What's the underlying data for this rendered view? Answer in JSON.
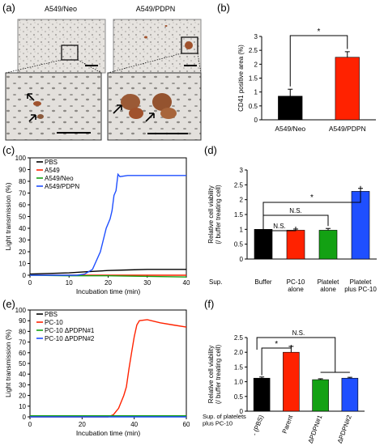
{
  "panels": {
    "a": {
      "label": "(a)",
      "images": [
        {
          "title": "A549/Neo"
        },
        {
          "title": "A549/PDPN"
        }
      ]
    },
    "b": {
      "label": "(b)"
    },
    "c": {
      "label": "(c)"
    },
    "d": {
      "label": "(d)"
    },
    "e": {
      "label": "(e)"
    },
    "f": {
      "label": "(f)"
    }
  },
  "colors": {
    "black": "#000000",
    "red": "#ff2200",
    "green": "#13a113",
    "blue": "#1f4fff",
    "stain": "#a0522d"
  },
  "chart_data": [
    {
      "id": "b",
      "type": "bar",
      "ylabel": "CD41 positive area (%)",
      "categories": [
        "A549/Neo",
        "A549/PDPN"
      ],
      "values": [
        0.85,
        2.25
      ],
      "errors": [
        0.25,
        0.2
      ],
      "colors": [
        "#000000",
        "#ff2200"
      ],
      "ylim": [
        0,
        3
      ],
      "yticks": [
        "0",
        "0.5",
        "1",
        "1.5",
        "2",
        "2.5",
        "3"
      ],
      "significance": [
        {
          "from": 0,
          "to": 1,
          "label": "*"
        }
      ]
    },
    {
      "id": "c",
      "type": "line",
      "xlabel": "Incubation time (min)",
      "ylabel": "Light transmission (%)",
      "xlim": [
        0,
        40
      ],
      "ylim": [
        0,
        100
      ],
      "xticks": [
        "0",
        "10",
        "20",
        "30",
        "40"
      ],
      "yticks": [
        "0",
        "10",
        "20",
        "30",
        "40",
        "50",
        "60",
        "70",
        "80",
        "90",
        "100"
      ],
      "legend_position": "top-left",
      "series": [
        {
          "name": "PBS",
          "color": "#000000",
          "points": [
            [
              0,
              1
            ],
            [
              5,
              1.5
            ],
            [
              10,
              2
            ],
            [
              15,
              3
            ],
            [
              20,
              4
            ],
            [
              25,
              4.5
            ],
            [
              30,
              5
            ],
            [
              35,
              5
            ],
            [
              40,
              5
            ]
          ]
        },
        {
          "name": "A549",
          "color": "#ff2200",
          "points": [
            [
              0,
              0
            ],
            [
              10,
              0
            ],
            [
              20,
              0
            ],
            [
              30,
              0
            ],
            [
              40,
              0
            ]
          ]
        },
        {
          "name": "A549/Neo",
          "color": "#13a113",
          "points": [
            [
              0,
              0
            ],
            [
              10,
              -0.5
            ],
            [
              20,
              -0.5
            ],
            [
              30,
              -1
            ],
            [
              40,
              -1.5
            ]
          ]
        },
        {
          "name": "A549/PDPN",
          "color": "#1f4fff",
          "points": [
            [
              0,
              0
            ],
            [
              12,
              0
            ],
            [
              14,
              1
            ],
            [
              16,
              5
            ],
            [
              18,
              20
            ],
            [
              19.5,
              40
            ],
            [
              20.5,
              48
            ],
            [
              21,
              55
            ],
            [
              21.5,
              68
            ],
            [
              22,
              72
            ],
            [
              22.5,
              86
            ],
            [
              23,
              84
            ],
            [
              25,
              85
            ],
            [
              30,
              85
            ],
            [
              35,
              85
            ],
            [
              40,
              85
            ]
          ]
        }
      ]
    },
    {
      "id": "d",
      "type": "bar",
      "ylabel": "Relative cell viability\n(/ buffer treating cell)",
      "row_label": "Sup.",
      "categories": [
        "Buffer",
        "PC-10 alone",
        "Platelet alone",
        "Platelet plus PC-10"
      ],
      "values": [
        1.0,
        0.97,
        0.97,
        2.28
      ],
      "errors": [
        0.0,
        0.04,
        0.06,
        0.1
      ],
      "colors": [
        "#000000",
        "#ff2200",
        "#13a113",
        "#1f4fff"
      ],
      "ylim": [
        0,
        3
      ],
      "yticks": [
        "0",
        "0.5",
        "1",
        "1.5",
        "2",
        "2.5",
        "3"
      ],
      "significance": [
        {
          "from": 0,
          "to": 1,
          "label": "N.S."
        },
        {
          "from": 0,
          "to": 2,
          "label": "N.S."
        },
        {
          "from": 0,
          "to": 3,
          "label": "*"
        }
      ]
    },
    {
      "id": "e",
      "type": "line",
      "xlabel": "Incubation time (min)",
      "ylabel": "Light transmission (%)",
      "xlim": [
        0,
        60
      ],
      "ylim": [
        0,
        100
      ],
      "xticks": [
        "0",
        "20",
        "40",
        "60"
      ],
      "yticks": [
        "0",
        "10",
        "20",
        "30",
        "40",
        "50",
        "60",
        "70",
        "80",
        "90",
        "100"
      ],
      "legend_position": "top-left",
      "series": [
        {
          "name": "PBS",
          "color": "#000000",
          "points": [
            [
              0,
              1
            ],
            [
              20,
              1
            ],
            [
              40,
              1
            ],
            [
              60,
              1
            ]
          ]
        },
        {
          "name": "PC-10",
          "color": "#ff2200",
          "points": [
            [
              0,
              0
            ],
            [
              30,
              0
            ],
            [
              32,
              2
            ],
            [
              34,
              8
            ],
            [
              36,
              20
            ],
            [
              37,
              28
            ],
            [
              38,
              45
            ],
            [
              39,
              60
            ],
            [
              40,
              75
            ],
            [
              41,
              86
            ],
            [
              42,
              90
            ],
            [
              45,
              91
            ],
            [
              50,
              88
            ],
            [
              55,
              86
            ],
            [
              60,
              84
            ]
          ]
        },
        {
          "name": "PC-10 ΔPDPN#1",
          "color": "#13a113",
          "points": [
            [
              0,
              1
            ],
            [
              20,
              1
            ],
            [
              40,
              1
            ],
            [
              60,
              1
            ]
          ]
        },
        {
          "name": "PC-10 ΔPDPN#2",
          "color": "#1f4fff",
          "points": [
            [
              0,
              0
            ],
            [
              20,
              0
            ],
            [
              40,
              0
            ],
            [
              60,
              0
            ]
          ]
        }
      ]
    },
    {
      "id": "f",
      "type": "bar",
      "ylabel": "Relative cell viability\n(/ buffer treating cell)",
      "row_label": "Sup. of platelets\nplus PC-10",
      "categories": [
        "- (PBS)",
        "Parent",
        "ΔPDPN#1",
        "ΔPDPN#2"
      ],
      "values": [
        1.12,
        2.0,
        1.07,
        1.12
      ],
      "errors": [
        0.04,
        0.2,
        0.03,
        0.03
      ],
      "colors": [
        "#000000",
        "#ff2200",
        "#13a113",
        "#1f4fff"
      ],
      "ylim": [
        0,
        2.5
      ],
      "yticks": [
        "0",
        "0.5",
        "1.0",
        "1.5",
        "2.0",
        "2.5"
      ],
      "significance": [
        {
          "from": 0,
          "to": 1,
          "label": "*"
        },
        {
          "from": 0,
          "to": 23,
          "label": "N.S."
        }
      ]
    }
  ]
}
